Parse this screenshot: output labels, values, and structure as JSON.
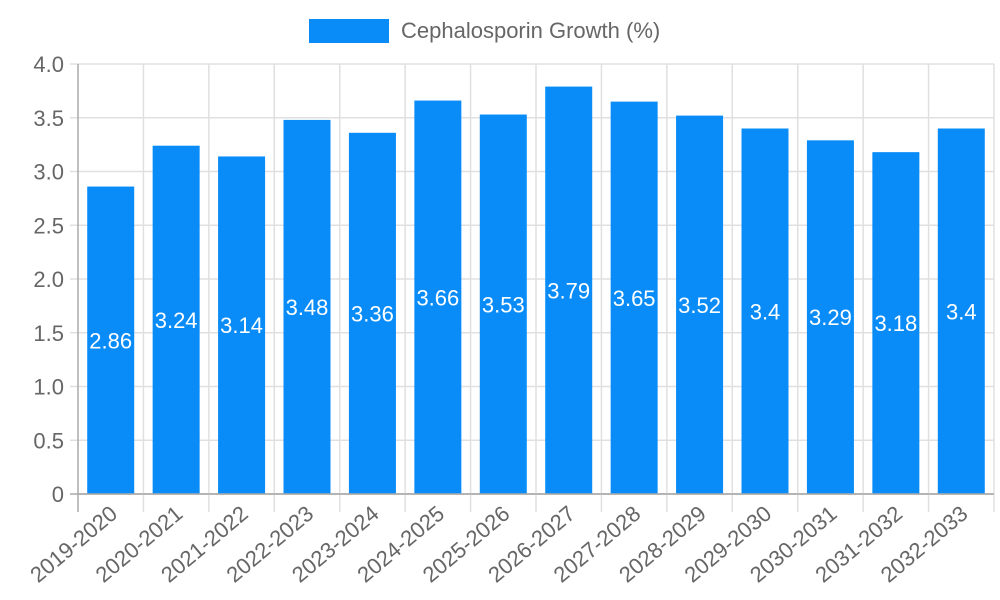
{
  "legend": {
    "label": "Cephalosporin Growth (%)",
    "color": "#0a8cf8"
  },
  "chart_data": {
    "type": "bar",
    "title": "",
    "xlabel": "",
    "ylabel": "",
    "ylim": [
      0,
      4.0
    ],
    "yticks": [
      "0",
      "0.5",
      "1.0",
      "1.5",
      "2.0",
      "2.5",
      "3.0",
      "3.5",
      "4.0"
    ],
    "grid": true,
    "legend_position": "top",
    "categories": [
      "2019-2020",
      "2020-2021",
      "2021-2022",
      "2022-2023",
      "2023-2024",
      "2024-2025",
      "2025-2026",
      "2026-2027",
      "2027-2028",
      "2028-2029",
      "2029-2030",
      "2030-2031",
      "2031-2032",
      "2032-2033"
    ],
    "series": [
      {
        "name": "Cephalosporin Growth (%)",
        "color": "#0a8cf8",
        "values": [
          2.86,
          3.24,
          3.14,
          3.48,
          3.36,
          3.66,
          3.53,
          3.79,
          3.65,
          3.52,
          3.4,
          3.29,
          3.18,
          3.4
        ],
        "labels": [
          "2.86",
          "3.24",
          "3.14",
          "3.48",
          "3.36",
          "3.66",
          "3.53",
          "3.79",
          "3.65",
          "3.52",
          "3.4",
          "3.29",
          "3.18",
          "3.4"
        ]
      }
    ]
  }
}
